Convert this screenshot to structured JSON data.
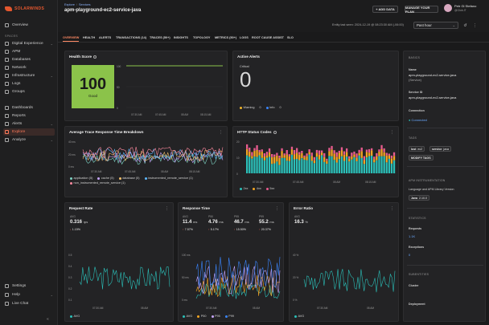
{
  "brand": {
    "name": "SOLARWINDS"
  },
  "sidebar": {
    "items_top": [
      {
        "label": "Overview"
      }
    ],
    "spaces_label": "SPACES",
    "items_spaces": [
      {
        "label": "Digital Experience"
      },
      {
        "label": "APM"
      },
      {
        "label": "Databases"
      },
      {
        "label": "Network"
      },
      {
        "label": "Infrastructure"
      },
      {
        "label": "Logs"
      },
      {
        "label": "Groups"
      }
    ],
    "items_tools": [
      {
        "label": "Dashboards"
      },
      {
        "label": "Reports"
      },
      {
        "label": "Alerts"
      },
      {
        "label": "Explore"
      },
      {
        "label": "Analyze"
      }
    ],
    "items_bottom": [
      {
        "label": "Settings"
      },
      {
        "label": "Help"
      },
      {
        "label": "Live Chat"
      }
    ]
  },
  "header": {
    "breadcrumb": [
      "Explore",
      "Services"
    ],
    "title": "apm-playground-ec2-service-java",
    "add_data": "+ ADD DATA",
    "manage_plan": "MANAGE YOUR PLAN",
    "user_name": "Petr Gl Stefano",
    "user_org": "@Glob-IT",
    "last_seen": "Entity last seen: 2024-12-19 @ 08:23:30 AM (-06:00)",
    "time_range": "Past hour"
  },
  "tabs": [
    {
      "label": "OVERVIEW"
    },
    {
      "label": "HEALTH"
    },
    {
      "label": "ALERTS"
    },
    {
      "label": "TRANSACTIONS (14)"
    },
    {
      "label": "TRACES (50+)"
    },
    {
      "label": "INSIGHTS"
    },
    {
      "label": "TOPOLOGY"
    },
    {
      "label": "METRICS (50+)"
    },
    {
      "label": "LOGS"
    },
    {
      "label": "ROOT CAUSE ASSIST"
    },
    {
      "label": "SLO"
    }
  ],
  "health": {
    "title": "Health Score",
    "value": "100",
    "label": "Good",
    "y_ticks": [
      "100",
      "50",
      "0"
    ],
    "x_ticks": [
      "07:30 AM",
      "07:45 AM",
      "08 AM",
      "08:15 AM"
    ]
  },
  "alerts": {
    "title": "Active Alerts",
    "critical_label": "Critical",
    "critical_value": "0",
    "warning_label": "Warning",
    "warning_value": "0",
    "info_label": "Info",
    "info_value": "0",
    "colors": {
      "warning": "#f0b429",
      "info": "#3a86ff"
    }
  },
  "trace_breakdown": {
    "title": "Average Trace Response Time Breakdown",
    "y_ticks": [
      "40 ms",
      "20 ms",
      "0 ms"
    ],
    "x_ticks": [
      "07:30 AM",
      "07:45 AM",
      "08 AM",
      "08:15 AM"
    ],
    "legend": [
      {
        "label": "application (5)",
        "color": "#7ed3c4"
      },
      {
        "label": "cache (5)",
        "color": "#c7a6ff"
      },
      {
        "label": "database (5)",
        "color": "#f5c06b"
      },
      {
        "label": "instrumented_remote_service (1)",
        "color": "#5cb8ff"
      },
      {
        "label": "non_instrumented_remote_service (1)",
        "color": "#ff8aa0"
      }
    ]
  },
  "http_codes": {
    "title": "HTTP Status Codes",
    "y_ticks": [
      "20",
      "10",
      "0"
    ],
    "x_ticks": [
      "07:30 AM",
      "07:45 AM",
      "08 AM",
      "08:15 AM"
    ],
    "legend": [
      {
        "label": "2xx",
        "color": "#2bbfb8"
      },
      {
        "label": "4xx",
        "color": "#f5a623"
      },
      {
        "label": "5xx",
        "color": "#e85b8f"
      }
    ]
  },
  "request_rate": {
    "title": "Request Rate",
    "avg_label": "AVG",
    "value": "0.316",
    "unit": "rps",
    "delta": "1.15%",
    "y_ticks": [
      "0.5",
      "0.4",
      "0.3",
      "0.2",
      "0.1"
    ],
    "x_ticks": [
      "07:30 AM",
      "08 AM"
    ],
    "legend": [
      {
        "label": "AVG",
        "color": "#2bbfb8"
      }
    ]
  },
  "response_time": {
    "title": "Response Time",
    "metrics": [
      {
        "label": "AVG",
        "value": "11.4",
        "unit": "ms",
        "delta": "7.57%"
      },
      {
        "label": "P50",
        "value": "4.76",
        "unit": "ms",
        "delta": "5.17%"
      },
      {
        "label": "P95",
        "value": "46.7",
        "unit": "ms",
        "delta": "15.50%"
      },
      {
        "label": "P99",
        "value": "55.2",
        "unit": "ms",
        "delta": "20.37%"
      }
    ],
    "y_ticks": [
      "100 ms",
      "50 ms",
      "0 ms"
    ],
    "x_ticks": [
      "07:30 AM",
      "08 AM"
    ],
    "legend": [
      {
        "label": "AVG",
        "color": "#2bbfb8"
      },
      {
        "label": "P50",
        "color": "#f5a623"
      },
      {
        "label": "P95",
        "color": "#c7a6ff"
      },
      {
        "label": "P99",
        "color": "#3a86ff"
      }
    ]
  },
  "error_ratio": {
    "title": "Error Ratio",
    "avg_label": "AVG",
    "value": "16.3",
    "unit": "%",
    "y_ticks": [
      "40 %",
      "20 %",
      "0 %"
    ],
    "x_ticks": [
      "07:30 AM",
      "08 AM"
    ],
    "legend": [
      {
        "label": "AVG",
        "color": "#2bbfb8"
      }
    ]
  },
  "details": {
    "basics_label": "BASICS",
    "name_label": "Name",
    "name_value": "apm-playground-ec2-service-java",
    "name_type": "(Service)",
    "service_id_label": "Service ID",
    "service_id_value": "apm-playground-ec2-service-java",
    "connection_label": "Connection",
    "connection_value": "Connected",
    "tags_label": "TAGS",
    "tags": [
      {
        "k": "lost",
        "v": "ec2"
      },
      {
        "k": "service",
        "v": "java"
      }
    ],
    "modify_tags": "MODIFY TAGS",
    "apm_label": "APM INSTRUMENTATION",
    "lang_label": "Language and APM Library Version",
    "lang_chip_k": "Java",
    "lang_chip_v": "2.10.0",
    "stats_label": "STATISTICS",
    "requests_label": "Requests",
    "requests_value": "1.1K",
    "exceptions_label": "Exceptions",
    "exceptions_value": "0",
    "subentities_label": "SUBENTITIES",
    "cluster_label": "Cluster",
    "deployment_label": "Deployment"
  }
}
